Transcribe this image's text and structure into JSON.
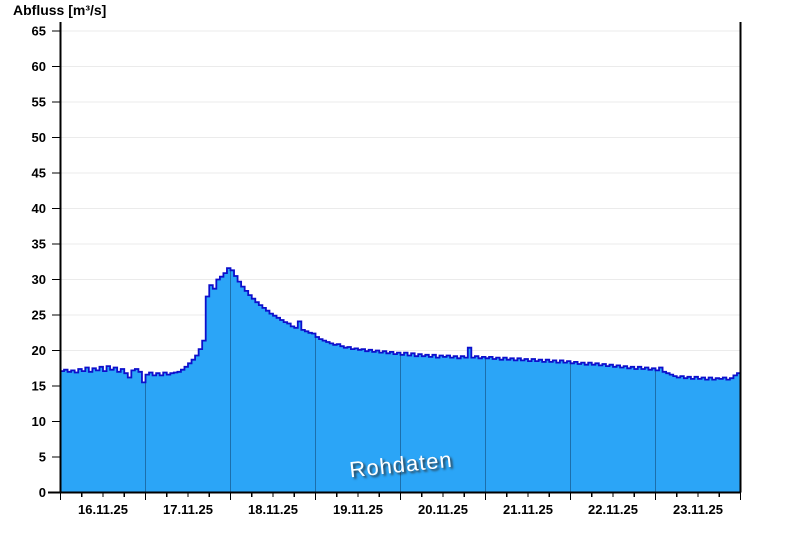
{
  "title": "Abfluss [m³/s]",
  "watermark": "Rohdaten",
  "colors": {
    "area_fill": "#2BA5F7",
    "series_line": "#0D0FCC",
    "day_separator": "#1C6FAC",
    "grid": "#EBEBEB",
    "axis": "#000000",
    "tick_label": "#000000",
    "watermark_text": "#FFFFFF",
    "background": "#FFFFFF"
  },
  "chart_data": {
    "type": "area",
    "title": "Abfluss [m³/s]",
    "xlabel": "",
    "ylabel": "Abfluss [m³/s]",
    "ylim": [
      0,
      65
    ],
    "y_tick_step": 5,
    "y_ticks": [
      0,
      5,
      10,
      15,
      20,
      25,
      30,
      35,
      40,
      45,
      50,
      55,
      60,
      65
    ],
    "x_tick_labels": [
      "16.11.25",
      "17.11.25",
      "18.11.25",
      "19.11.25",
      "20.11.25",
      "21.11.25",
      "22.11.25",
      "23.11.25"
    ],
    "x_range_hours": [
      0,
      192
    ],
    "hours_per_day": 24,
    "minor_tick_hours": 6,
    "grid_horizontal": true,
    "day_separators": true,
    "legend_position": "none",
    "annotations": [
      "Rohdaten"
    ],
    "series": [
      {
        "name": "Rohdaten",
        "unit": "m³/s",
        "x_start": "16.11.25 00:00",
        "x_step_hours": 1,
        "values": [
          17.1,
          17.3,
          17.0,
          17.2,
          16.9,
          17.4,
          17.1,
          17.6,
          17.0,
          17.5,
          17.2,
          17.7,
          17.1,
          17.8,
          17.3,
          17.6,
          17.0,
          17.4,
          16.8,
          16.2,
          17.2,
          17.4,
          17.0,
          15.5,
          16.6,
          16.9,
          16.5,
          16.8,
          16.5,
          16.9,
          16.6,
          16.8,
          16.9,
          17.0,
          17.3,
          17.7,
          18.2,
          18.7,
          19.3,
          20.2,
          21.4,
          27.6,
          29.2,
          28.7,
          30.0,
          30.4,
          30.9,
          31.6,
          31.3,
          30.5,
          29.7,
          29.0,
          28.4,
          27.8,
          27.3,
          26.8,
          26.4,
          26.0,
          25.6,
          25.2,
          24.9,
          24.6,
          24.3,
          24.0,
          23.8,
          23.4,
          23.2,
          24.1,
          22.9,
          22.7,
          22.5,
          22.4,
          21.9,
          21.6,
          21.4,
          21.2,
          21.0,
          20.8,
          20.9,
          20.6,
          20.4,
          20.5,
          20.2,
          20.3,
          20.1,
          20.2,
          19.9,
          20.1,
          19.8,
          20.0,
          19.7,
          19.9,
          19.6,
          19.8,
          19.5,
          19.7,
          19.4,
          19.7,
          19.3,
          19.6,
          19.2,
          19.5,
          19.2,
          19.4,
          19.1,
          19.4,
          19.0,
          19.3,
          19.1,
          19.3,
          19.0,
          19.2,
          18.9,
          19.2,
          19.0,
          20.4,
          19.0,
          19.2,
          18.9,
          19.1,
          18.9,
          19.1,
          18.8,
          19.0,
          18.7,
          19.0,
          18.7,
          18.9,
          18.6,
          18.9,
          18.6,
          18.8,
          18.5,
          18.8,
          18.5,
          18.7,
          18.4,
          18.7,
          18.4,
          18.6,
          18.3,
          18.6,
          18.3,
          18.5,
          18.2,
          18.4,
          18.1,
          18.3,
          18.0,
          18.3,
          18.0,
          18.2,
          17.9,
          18.1,
          17.8,
          18.0,
          17.7,
          17.9,
          17.6,
          17.8,
          17.5,
          17.7,
          17.4,
          17.7,
          17.4,
          17.6,
          17.3,
          17.5,
          17.2,
          17.6,
          17.0,
          16.8,
          16.6,
          16.4,
          16.2,
          16.4,
          16.1,
          16.3,
          16.0,
          16.3,
          16.0,
          16.2,
          15.9,
          16.2,
          15.9,
          16.1,
          16.0,
          16.2,
          15.9,
          16.1,
          16.5,
          16.8,
          17.1
        ]
      }
    ]
  }
}
